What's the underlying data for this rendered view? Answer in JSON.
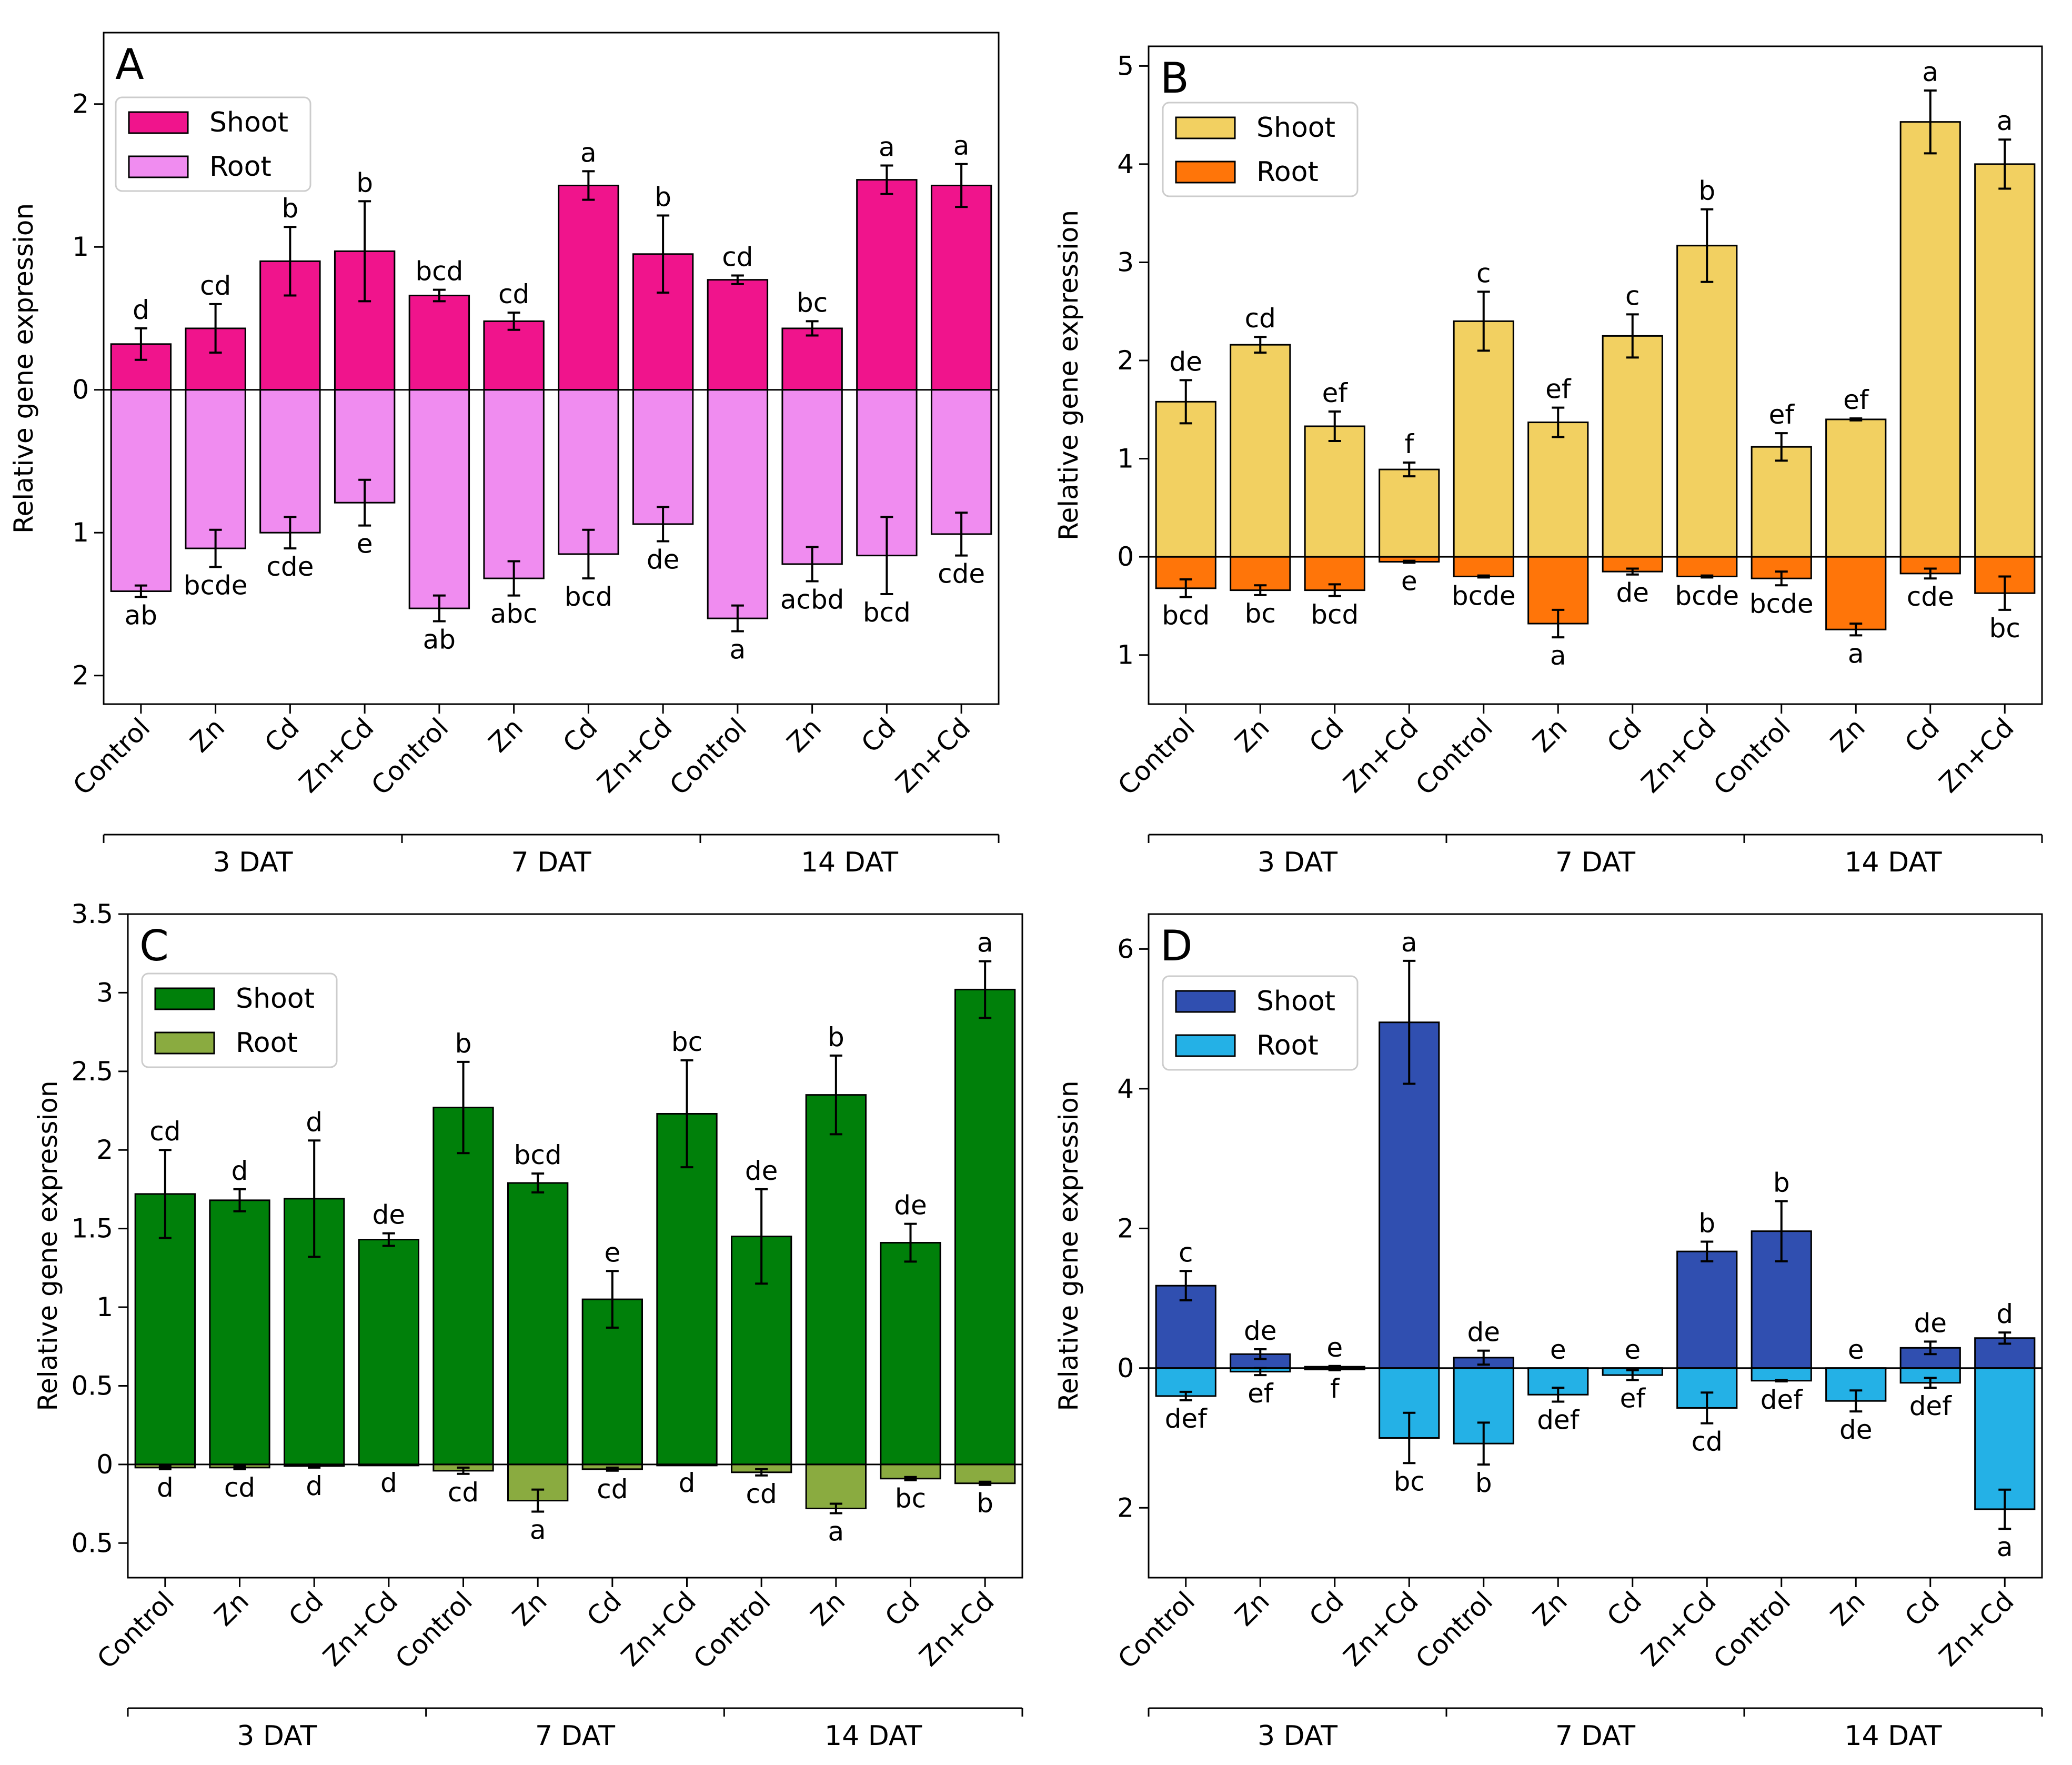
{
  "colors": {
    "A": {
      "shoot": "#f0148c",
      "root": "#f08cf0"
    },
    "B": {
      "shoot": "#f2d061",
      "root": "#ff7509"
    },
    "C": {
      "shoot": "#00800a",
      "root": "#8aab40"
    },
    "D": {
      "shoot": "#304fb0",
      "root": "#24b1e6"
    }
  },
  "chart_data": [
    {
      "panel": "A",
      "type": "bar",
      "ylabel": "Relative gene expression",
      "ylim": [
        -2.2,
        2.5
      ],
      "yticks": [
        -2,
        -1,
        0,
        1,
        2
      ],
      "ytick_labels": [
        "2",
        "1",
        "0",
        "1",
        "2"
      ],
      "categories": [
        "Control",
        "Zn",
        "Cd",
        "Zn+Cd",
        "Control",
        "Zn",
        "Cd",
        "Zn+Cd",
        "Control",
        "Zn",
        "Cd",
        "Zn+Cd"
      ],
      "groups": [
        "3 DAT",
        "7 DAT",
        "14 DAT"
      ],
      "legend": [
        "Shoot",
        "Root"
      ],
      "shoot": {
        "values": [
          0.32,
          0.43,
          0.9,
          0.97,
          0.66,
          0.48,
          1.43,
          0.95,
          0.77,
          0.43,
          1.47,
          1.43
        ],
        "errors": [
          0.11,
          0.17,
          0.24,
          0.35,
          0.04,
          0.06,
          0.1,
          0.27,
          0.03,
          0.05,
          0.1,
          0.15
        ],
        "letters": [
          "d",
          "cd",
          "b",
          "b",
          "bcd",
          "cd",
          "a",
          "b",
          "cd",
          "bc",
          "a",
          "a"
        ]
      },
      "root": {
        "values": [
          -1.41,
          -1.11,
          -1.0,
          -0.79,
          -1.53,
          -1.32,
          -1.15,
          -0.94,
          -1.6,
          -1.22,
          -1.16,
          -1.01
        ],
        "errors": [
          0.04,
          0.13,
          0.11,
          0.16,
          0.09,
          0.12,
          0.17,
          0.12,
          0.09,
          0.12,
          0.27,
          0.15
        ],
        "letters": [
          "ab",
          "bcde",
          "cde",
          "e",
          "ab",
          "abc",
          "bcd",
          "de",
          "a",
          "acbd",
          "bcd",
          "cde"
        ]
      }
    },
    {
      "panel": "B",
      "type": "bar",
      "ylabel": "Relative gene expression",
      "ylim": [
        -1.5,
        5.2
      ],
      "yticks": [
        -1,
        0,
        1,
        2,
        3,
        4,
        5
      ],
      "ytick_labels": [
        "1",
        "0",
        "1",
        "2",
        "3",
        "4",
        "5"
      ],
      "categories": [
        "Control",
        "Zn",
        "Cd",
        "Zn+Cd",
        "Control",
        "Zn",
        "Cd",
        "Zn+Cd",
        "Control",
        "Zn",
        "Cd",
        "Zn+Cd"
      ],
      "groups": [
        "3 DAT",
        "7 DAT",
        "14 DAT"
      ],
      "legend": [
        "Shoot",
        "Root"
      ],
      "shoot": {
        "values": [
          1.58,
          2.16,
          1.33,
          0.89,
          2.4,
          1.37,
          2.25,
          3.17,
          1.12,
          1.4,
          4.43,
          4.0
        ],
        "errors": [
          0.22,
          0.08,
          0.15,
          0.07,
          0.3,
          0.15,
          0.22,
          0.37,
          0.14,
          0.01,
          0.32,
          0.25
        ],
        "letters": [
          "de",
          "cd",
          "ef",
          "f",
          "c",
          "ef",
          "c",
          "b",
          "ef",
          "ef",
          "a",
          "a"
        ]
      },
      "root": {
        "values": [
          -0.32,
          -0.34,
          -0.34,
          -0.05,
          -0.2,
          -0.68,
          -0.15,
          -0.2,
          -0.22,
          -0.74,
          -0.17,
          -0.37
        ],
        "errors": [
          0.09,
          0.05,
          0.06,
          0.01,
          0.01,
          0.14,
          0.03,
          0.01,
          0.07,
          0.06,
          0.05,
          0.17
        ],
        "letters": [
          "bcd",
          "bc",
          "bcd",
          "e",
          "bcde",
          "a",
          "de",
          "bcde",
          "bcde",
          "a",
          "cde",
          "bc"
        ]
      }
    },
    {
      "panel": "C",
      "type": "bar",
      "ylabel": "Relative gene expression",
      "ylim": [
        -0.72,
        3.5
      ],
      "yticks": [
        -0.5,
        0,
        0.5,
        1,
        1.5,
        2,
        2.5,
        3,
        3.5
      ],
      "ytick_labels": [
        "0.5",
        "0",
        "0.5",
        "1",
        "1.5",
        "2",
        "2.5",
        "3",
        "3.5"
      ],
      "categories": [
        "Control",
        "Zn",
        "Cd",
        "Zn+Cd",
        "Control",
        "Zn",
        "Cd",
        "Zn+Cd",
        "Control",
        "Zn",
        "Cd",
        "Zn+Cd"
      ],
      "groups": [
        "3 DAT",
        "7 DAT",
        "14 DAT"
      ],
      "legend": [
        "Shoot",
        "Root"
      ],
      "shoot": {
        "values": [
          1.72,
          1.68,
          1.69,
          1.43,
          2.27,
          1.79,
          1.05,
          2.23,
          1.45,
          2.35,
          1.41,
          3.02
        ],
        "errors": [
          0.28,
          0.07,
          0.37,
          0.04,
          0.29,
          0.06,
          0.18,
          0.34,
          0.3,
          0.25,
          0.12,
          0.18
        ],
        "letters": [
          "cd",
          "d",
          "d",
          "de",
          "b",
          "bcd",
          "e",
          "bc",
          "de",
          "b",
          "de",
          "a"
        ]
      },
      "root": {
        "values": [
          -0.02,
          -0.02,
          -0.01,
          0.0,
          -0.04,
          -0.23,
          -0.03,
          0.0,
          -0.05,
          -0.28,
          -0.09,
          -0.12
        ],
        "errors": [
          0.01,
          0.01,
          0.01,
          0.0,
          0.02,
          0.07,
          0.01,
          0.0,
          0.02,
          0.03,
          0.01,
          0.01
        ],
        "letters": [
          "d",
          "cd",
          "d",
          "d",
          "cd",
          "a",
          "cd",
          "d",
          "cd",
          "a",
          "bc",
          "b"
        ]
      }
    },
    {
      "panel": "D",
      "type": "bar",
      "ylabel": "Relative gene expression",
      "ylim": [
        -3.0,
        6.5
      ],
      "yticks": [
        -2,
        0,
        2,
        4,
        6
      ],
      "ytick_labels": [
        "2",
        "0",
        "2",
        "4",
        "6"
      ],
      "categories": [
        "Control",
        "Zn",
        "Cd",
        "Zn+Cd",
        "Control",
        "Zn",
        "Cd",
        "Zn+Cd",
        "Control",
        "Zn",
        "Cd",
        "Zn+Cd"
      ],
      "groups": [
        "3 DAT",
        "7 DAT",
        "14 DAT"
      ],
      "legend": [
        "Shoot",
        "Root"
      ],
      "shoot": {
        "values": [
          1.18,
          0.2,
          0.02,
          4.95,
          0.15,
          0.0,
          0.0,
          1.67,
          1.96,
          0.0,
          0.29,
          0.43
        ],
        "errors": [
          0.21,
          0.07,
          0.01,
          0.88,
          0.1,
          0.0,
          0.0,
          0.14,
          0.43,
          0.0,
          0.09,
          0.08
        ],
        "letters": [
          "c",
          "de",
          "e",
          "a",
          "de",
          "e",
          "e",
          "b",
          "b",
          "e",
          "de",
          "d"
        ]
      },
      "root": {
        "values": [
          -0.4,
          -0.05,
          -0.02,
          -1.0,
          -1.08,
          -0.38,
          -0.1,
          -0.57,
          -0.18,
          -0.47,
          -0.21,
          -2.02
        ],
        "errors": [
          0.06,
          0.05,
          0.01,
          0.36,
          0.3,
          0.1,
          0.07,
          0.22,
          0.01,
          0.15,
          0.07,
          0.28
        ],
        "letters": [
          "def",
          "ef",
          "f",
          "bc",
          "b",
          "def",
          "ef",
          "cd",
          "def",
          "de",
          "def",
          "a"
        ]
      }
    }
  ]
}
